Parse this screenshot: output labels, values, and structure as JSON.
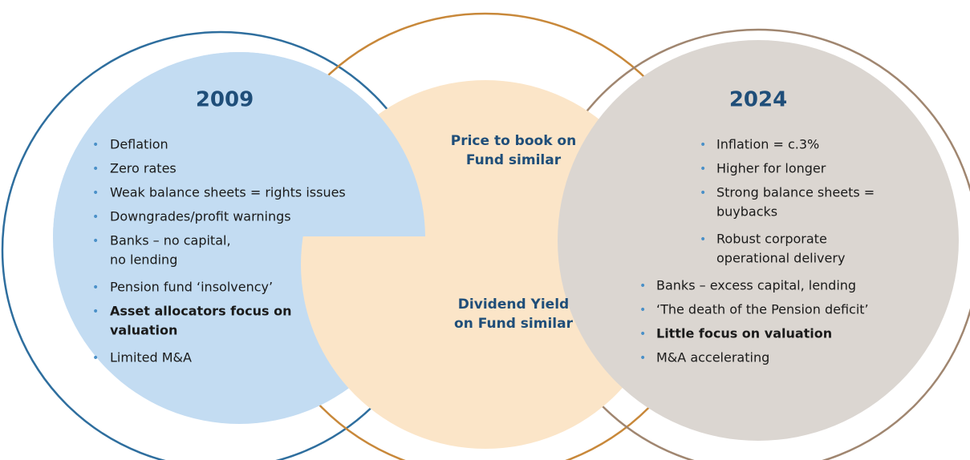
{
  "left": {
    "title": "2009",
    "items": [
      {
        "lines": [
          "Deflation"
        ]
      },
      {
        "lines": [
          "Zero rates"
        ]
      },
      {
        "lines": [
          "Weak balance sheets = rights issues"
        ]
      },
      {
        "lines": [
          "Downgrades/profit warnings"
        ]
      },
      {
        "lines": [
          "Banks – no capital,",
          "no lending"
        ]
      },
      {
        "lines": [
          "Pension fund ‘insolvency’"
        ]
      },
      {
        "lines": [
          "Asset allocators focus on",
          "valuation"
        ],
        "bold": true
      },
      {
        "lines": [
          "Limited M&A"
        ]
      }
    ]
  },
  "middle": {
    "top": [
      "Price to book on",
      "Fund similar"
    ],
    "bottom": [
      "Dividend Yield",
      "on Fund similar"
    ]
  },
  "right": {
    "title": "2024",
    "items": [
      {
        "lines": [
          "Inflation = c.3%"
        ]
      },
      {
        "lines": [
          "Higher for longer"
        ]
      },
      {
        "lines": [
          "Strong balance sheets =",
          "buybacks"
        ]
      },
      {
        "lines": [
          "Robust corporate",
          "operational delivery"
        ]
      },
      {
        "lines": [
          "Banks – excess capital, lending"
        ]
      },
      {
        "lines": [
          "‘The death of the Pension deficit’"
        ]
      },
      {
        "lines": [
          "Little focus on valuation"
        ],
        "bold": true
      },
      {
        "lines": [
          "M&A accelerating"
        ]
      }
    ]
  }
}
